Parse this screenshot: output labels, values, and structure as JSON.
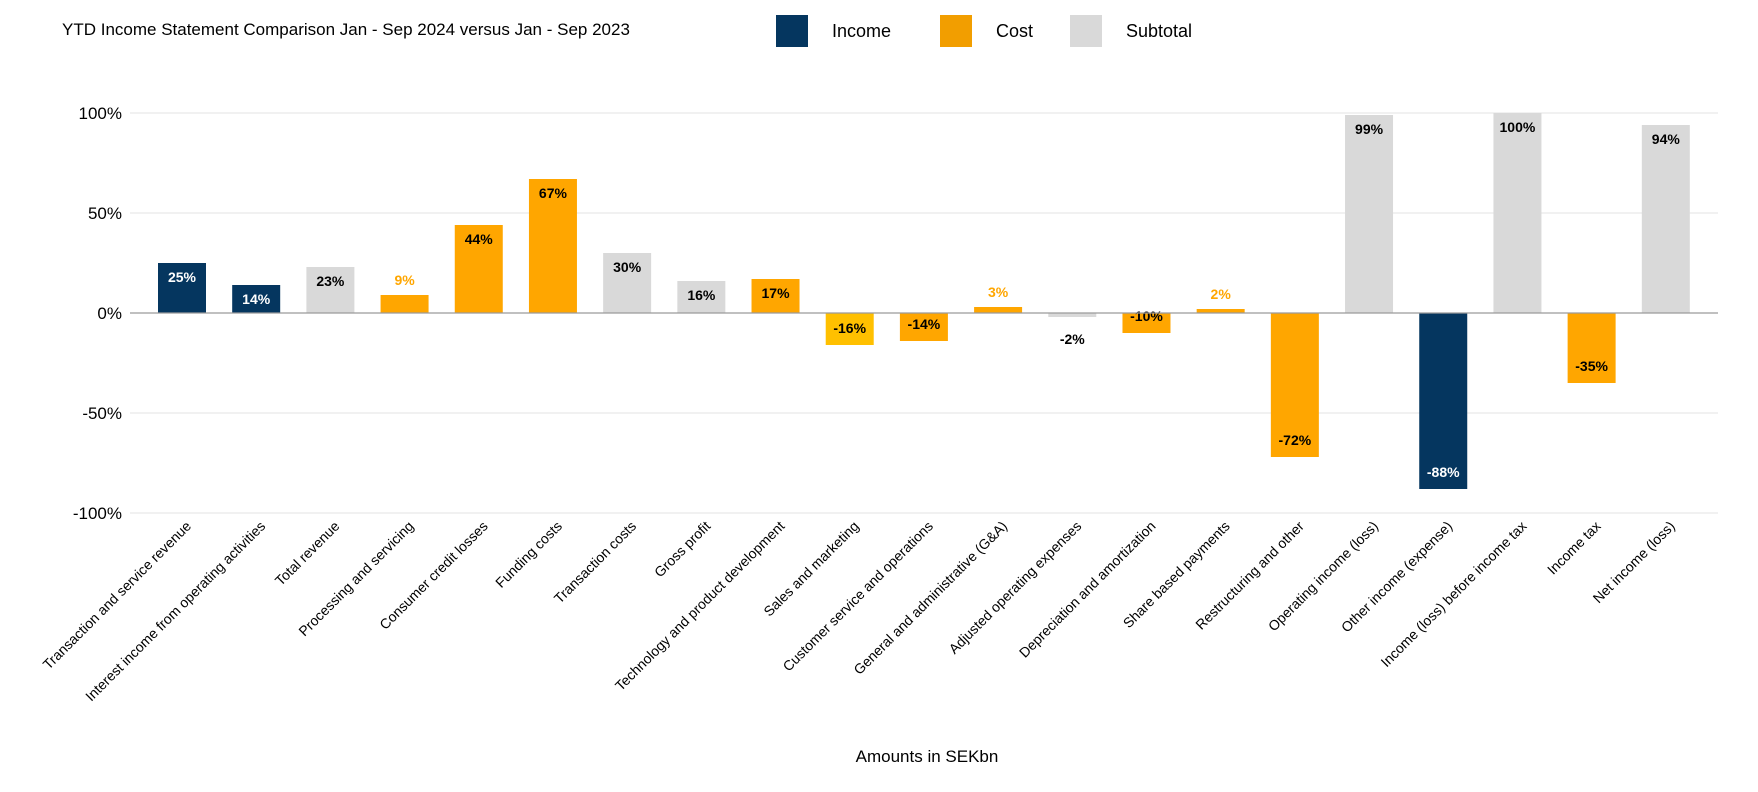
{
  "chart_data": {
    "type": "bar",
    "title": "YTD Income Statement Comparison Jan - Sep 2024 versus Jan - Sep 2023",
    "xlabel": "Amounts in SEKbn",
    "ylabel": "",
    "ylim": [
      -100,
      100
    ],
    "yticks": [
      100,
      50,
      0,
      -50,
      -100
    ],
    "ytick_labels": [
      "100%",
      "50%",
      "0%",
      "-50%",
      "-100%"
    ],
    "grid": true,
    "legend_position": "top",
    "legend": [
      {
        "name": "Income",
        "color": "#05365f"
      },
      {
        "name": "Cost",
        "color": "#f29e00"
      },
      {
        "name": "Subtotal",
        "color": "#d9d9d9"
      }
    ],
    "categories": [
      "Transaction and service revenue",
      "Interest income from operating activities",
      "Total revenue",
      "Processing and servicing",
      "Consumer credit losses",
      "Funding costs",
      "Transaction costs",
      "Gross profit",
      "Technology and product development",
      "Sales and marketing",
      "Customer service and operations",
      "General and administrative (G&A)",
      "Adjusted operating expenses",
      "Depreciation and amortization",
      "Share based payments",
      "Restructuring and other",
      "Operating income (loss)",
      "Other income (expense)",
      "Income (loss) before income tax",
      "Income tax",
      "Net income (loss)"
    ],
    "values": [
      25,
      14,
      23,
      9,
      44,
      67,
      30,
      16,
      17,
      -16,
      -14,
      3,
      -2,
      -10,
      2,
      -72,
      99,
      -88,
      100,
      -35,
      94
    ],
    "data_labels": [
      "25%",
      "14%",
      "23%",
      "9%",
      "44%",
      "67%",
      "30%",
      "16%",
      "17%",
      "-16%",
      "-14%",
      "3%",
      "-2%",
      "-10%",
      "2%",
      "-72%",
      "99%",
      "-88%",
      "100%",
      "-35%",
      "94%"
    ],
    "groups": [
      "Income",
      "Income",
      "Subtotal",
      "Cost",
      "Cost",
      "Cost",
      "Subtotal",
      "Subtotal",
      "Cost",
      "Cost",
      "Cost",
      "Cost",
      "Subtotal",
      "Cost",
      "Cost",
      "Cost",
      "Subtotal",
      "Income",
      "Subtotal",
      "Cost",
      "Subtotal"
    ],
    "bar_colors": [
      "#05365f",
      "#05365f",
      "#d9d9d9",
      "#ffa600",
      "#ffa600",
      "#ffa600",
      "#d9d9d9",
      "#d9d9d9",
      "#ffa600",
      "#ffc000",
      "#ffa600",
      "#ffa600",
      "#d9d9d9",
      "#ffa600",
      "#ffa600",
      "#ffa600",
      "#d9d9d9",
      "#05365f",
      "#d9d9d9",
      "#ffa600",
      "#d9d9d9"
    ],
    "label_colors": [
      "#ffffff",
      "#ffffff",
      "#000000",
      "#ffa600",
      "#000000",
      "#000000",
      "#000000",
      "#000000",
      "#000000",
      "#000000",
      "#000000",
      "#ffa600",
      "#000000",
      "#000000",
      "#ffa600",
      "#000000",
      "#000000",
      "#ffffff",
      "#000000",
      "#000000",
      "#000000"
    ]
  }
}
